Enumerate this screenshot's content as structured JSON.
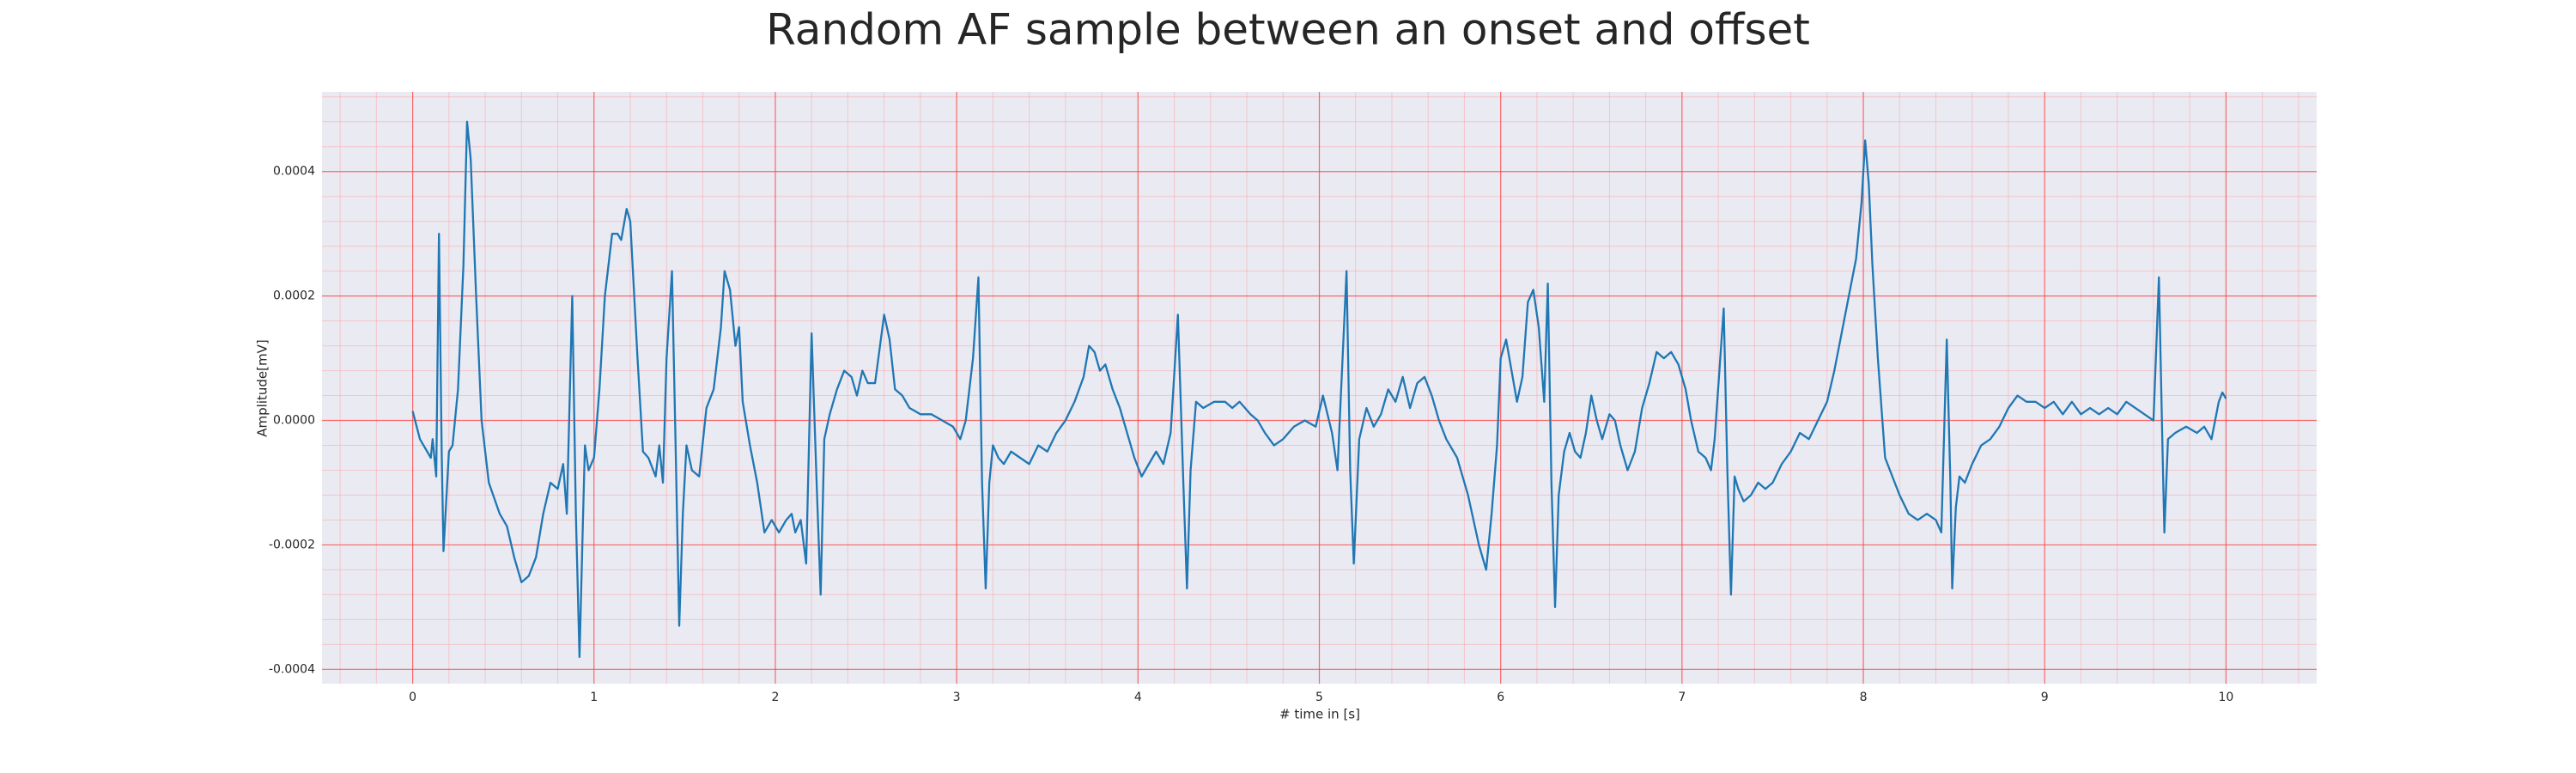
{
  "chart_data": {
    "type": "line",
    "title": "Random AF sample between an onset and offset",
    "x_label": "# time in [s]",
    "y_label": "Amplitude[mV]",
    "color": "#1f77b4",
    "grid": true,
    "minor_grid": true,
    "minor_divisions": 5,
    "xlim": [
      -0.5,
      10.5
    ],
    "ylim": [
      -0.000423,
      0.000528
    ],
    "xticks": [
      0,
      1,
      2,
      3,
      4,
      5,
      6,
      7,
      8,
      9,
      10
    ],
    "yticks": [
      {
        "value": -0.0004,
        "label": "-0.0004"
      },
      {
        "value": -0.0002,
        "label": "-0.0002"
      },
      {
        "value": 0,
        "label": "0.0000"
      },
      {
        "value": 0.0002,
        "label": "0.0002"
      },
      {
        "value": 0.0004,
        "label": "0.0004"
      }
    ],
    "x": [
      0.0,
      0.04,
      0.08,
      0.1,
      0.11,
      0.13,
      0.145,
      0.16,
      0.17,
      0.2,
      0.22,
      0.25,
      0.28,
      0.3,
      0.32,
      0.35,
      0.38,
      0.42,
      0.48,
      0.52,
      0.56,
      0.6,
      0.64,
      0.68,
      0.72,
      0.76,
      0.8,
      0.83,
      0.85,
      0.88,
      0.9,
      0.92,
      0.94,
      0.95,
      0.97,
      1.0,
      1.03,
      1.06,
      1.1,
      1.13,
      1.15,
      1.18,
      1.2,
      1.24,
      1.27,
      1.3,
      1.34,
      1.36,
      1.38,
      1.4,
      1.43,
      1.45,
      1.47,
      1.49,
      1.51,
      1.54,
      1.58,
      1.62,
      1.66,
      1.7,
      1.72,
      1.75,
      1.78,
      1.8,
      1.82,
      1.86,
      1.9,
      1.94,
      1.98,
      2.02,
      2.06,
      2.09,
      2.11,
      2.14,
      2.17,
      2.2,
      2.23,
      2.25,
      2.27,
      2.3,
      2.34,
      2.38,
      2.42,
      2.45,
      2.48,
      2.51,
      2.55,
      2.6,
      2.63,
      2.66,
      2.7,
      2.74,
      2.8,
      2.86,
      2.92,
      2.98,
      3.02,
      3.05,
      3.09,
      3.12,
      3.14,
      3.16,
      3.18,
      3.2,
      3.23,
      3.26,
      3.3,
      3.35,
      3.4,
      3.45,
      3.5,
      3.55,
      3.6,
      3.65,
      3.7,
      3.73,
      3.76,
      3.79,
      3.82,
      3.86,
      3.9,
      3.94,
      3.98,
      4.02,
      4.06,
      4.1,
      4.14,
      4.18,
      4.22,
      4.25,
      4.27,
      4.29,
      4.32,
      4.36,
      4.42,
      4.48,
      4.52,
      4.56,
      4.62,
      4.66,
      4.7,
      4.75,
      4.8,
      4.86,
      4.92,
      4.98,
      5.02,
      5.07,
      5.1,
      5.15,
      5.17,
      5.19,
      5.22,
      5.26,
      5.3,
      5.34,
      5.38,
      5.42,
      5.46,
      5.5,
      5.54,
      5.58,
      5.62,
      5.66,
      5.7,
      5.76,
      5.82,
      5.88,
      5.92,
      5.95,
      5.98,
      6.0,
      6.03,
      6.06,
      6.09,
      6.12,
      6.15,
      6.18,
      6.21,
      6.24,
      6.26,
      6.28,
      6.3,
      6.32,
      6.35,
      6.38,
      6.41,
      6.44,
      6.47,
      6.5,
      6.53,
      6.56,
      6.6,
      6.63,
      6.66,
      6.7,
      6.74,
      6.78,
      6.82,
      6.86,
      6.9,
      6.94,
      6.98,
      7.02,
      7.05,
      7.09,
      7.13,
      7.16,
      7.18,
      7.23,
      7.25,
      7.27,
      7.29,
      7.31,
      7.34,
      7.38,
      7.42,
      7.46,
      7.5,
      7.55,
      7.6,
      7.65,
      7.7,
      7.75,
      7.8,
      7.84,
      7.88,
      7.92,
      7.96,
      7.99,
      8.01,
      8.03,
      8.05,
      8.08,
      8.12,
      8.16,
      8.2,
      8.25,
      8.3,
      8.35,
      8.4,
      8.43,
      8.46,
      8.48,
      8.49,
      8.51,
      8.53,
      8.56,
      8.6,
      8.65,
      8.7,
      8.75,
      8.8,
      8.85,
      8.9,
      8.95,
      9.0,
      9.05,
      9.1,
      9.15,
      9.2,
      9.25,
      9.3,
      9.35,
      9.4,
      9.45,
      9.5,
      9.55,
      9.6,
      9.63,
      9.65,
      9.66,
      9.68,
      9.72,
      9.78,
      9.84,
      9.88,
      9.92,
      9.96,
      9.98,
      10.0
    ],
    "values": [
      1.5e-05,
      -3e-05,
      -5e-05,
      -6e-05,
      -3e-05,
      -9e-05,
      0.0003,
      -5e-05,
      -0.00021,
      -5e-05,
      -4e-05,
      5e-05,
      0.00025,
      0.00048,
      0.00042,
      0.0002,
      0,
      -0.0001,
      -0.00015,
      -0.00017,
      -0.00022,
      -0.00026,
      -0.00025,
      -0.00022,
      -0.00015,
      -0.0001,
      -0.00011,
      -7e-05,
      -0.00015,
      0.0002,
      -0.00015,
      -0.00038,
      -0.00015,
      -4e-05,
      -8e-05,
      -6e-05,
      5e-05,
      0.0002,
      0.0003,
      0.0003,
      0.00029,
      0.00034,
      0.00032,
      0.0001,
      -5e-05,
      -6e-05,
      -9e-05,
      -4e-05,
      -0.0001,
      0.0001,
      0.00024,
      -4e-05,
      -0.00033,
      -0.00015,
      -4e-05,
      -8e-05,
      -9e-05,
      2e-05,
      5e-05,
      0.00015,
      0.00024,
      0.00021,
      0.00012,
      0.00015,
      3e-05,
      -4e-05,
      -0.0001,
      -0.00018,
      -0.00016,
      -0.00018,
      -0.00016,
      -0.00015,
      -0.00018,
      -0.00016,
      -0.00023,
      0.00014,
      -0.00012,
      -0.00028,
      -3e-05,
      1e-05,
      5e-05,
      8e-05,
      7e-05,
      4e-05,
      8e-05,
      6e-05,
      6e-05,
      0.00017,
      0.00013,
      5e-05,
      4e-05,
      2e-05,
      1e-05,
      1e-05,
      0,
      -1e-05,
      -3e-05,
      0,
      0.0001,
      0.00023,
      -0.0001,
      -0.00027,
      -0.0001,
      -4e-05,
      -6e-05,
      -7e-05,
      -5e-05,
      -6e-05,
      -7e-05,
      -4e-05,
      -5e-05,
      -2e-05,
      0,
      3e-05,
      7e-05,
      0.00012,
      0.00011,
      8e-05,
      9e-05,
      5e-05,
      2e-05,
      -2e-05,
      -6e-05,
      -9e-05,
      -7e-05,
      -5e-05,
      -7e-05,
      -2e-05,
      0.00017,
      -0.0001,
      -0.00027,
      -8e-05,
      3e-05,
      2e-05,
      3e-05,
      3e-05,
      2e-05,
      3e-05,
      1e-05,
      0,
      -2e-05,
      -4e-05,
      -3e-05,
      -1e-05,
      0,
      -1e-05,
      4e-05,
      -2e-05,
      -8e-05,
      0.00024,
      -8e-05,
      -0.00023,
      -3e-05,
      2e-05,
      -1e-05,
      1e-05,
      5e-05,
      3e-05,
      7e-05,
      2e-05,
      6e-05,
      7e-05,
      4e-05,
      0,
      -3e-05,
      -6e-05,
      -0.00012,
      -0.0002,
      -0.00024,
      -0.00015,
      -4e-05,
      0.0001,
      0.00013,
      8e-05,
      3e-05,
      7e-05,
      0.00019,
      0.00021,
      0.00015,
      3e-05,
      0.00022,
      -0.0001,
      -0.0003,
      -0.00012,
      -5e-05,
      -2e-05,
      -5e-05,
      -6e-05,
      -2e-05,
      4e-05,
      0,
      -3e-05,
      1e-05,
      0,
      -4e-05,
      -8e-05,
      -5e-05,
      2e-05,
      6e-05,
      0.00011,
      0.0001,
      0.00011,
      9e-05,
      5e-05,
      0,
      -5e-05,
      -6e-05,
      -8e-05,
      -3e-05,
      0.00018,
      -8e-05,
      -0.00028,
      -9e-05,
      -0.00011,
      -0.00013,
      -0.00012,
      -0.0001,
      -0.00011,
      -0.0001,
      -7e-05,
      -5e-05,
      -2e-05,
      -3e-05,
      0,
      3e-05,
      8e-05,
      0.00014,
      0.0002,
      0.00026,
      0.00035,
      0.00045,
      0.00038,
      0.00025,
      0.0001,
      -6e-05,
      -9e-05,
      -0.00012,
      -0.00015,
      -0.00016,
      -0.00015,
      -0.00016,
      -0.00018,
      0.00013,
      -0.0001,
      -0.00027,
      -0.00014,
      -9e-05,
      -0.0001,
      -7e-05,
      -4e-05,
      -3e-05,
      -1e-05,
      2e-05,
      4e-05,
      3e-05,
      3e-05,
      2e-05,
      3e-05,
      1e-05,
      3e-05,
      1e-05,
      2e-05,
      1e-05,
      2e-05,
      1e-05,
      3e-05,
      2e-05,
      1e-05,
      0,
      0.00023,
      -5e-05,
      -0.00018,
      -3e-05,
      -2e-05,
      -1e-05,
      -2e-05,
      -1e-05,
      -3e-05,
      3e-05,
      4.5e-05,
      3.5e-05
    ]
  }
}
